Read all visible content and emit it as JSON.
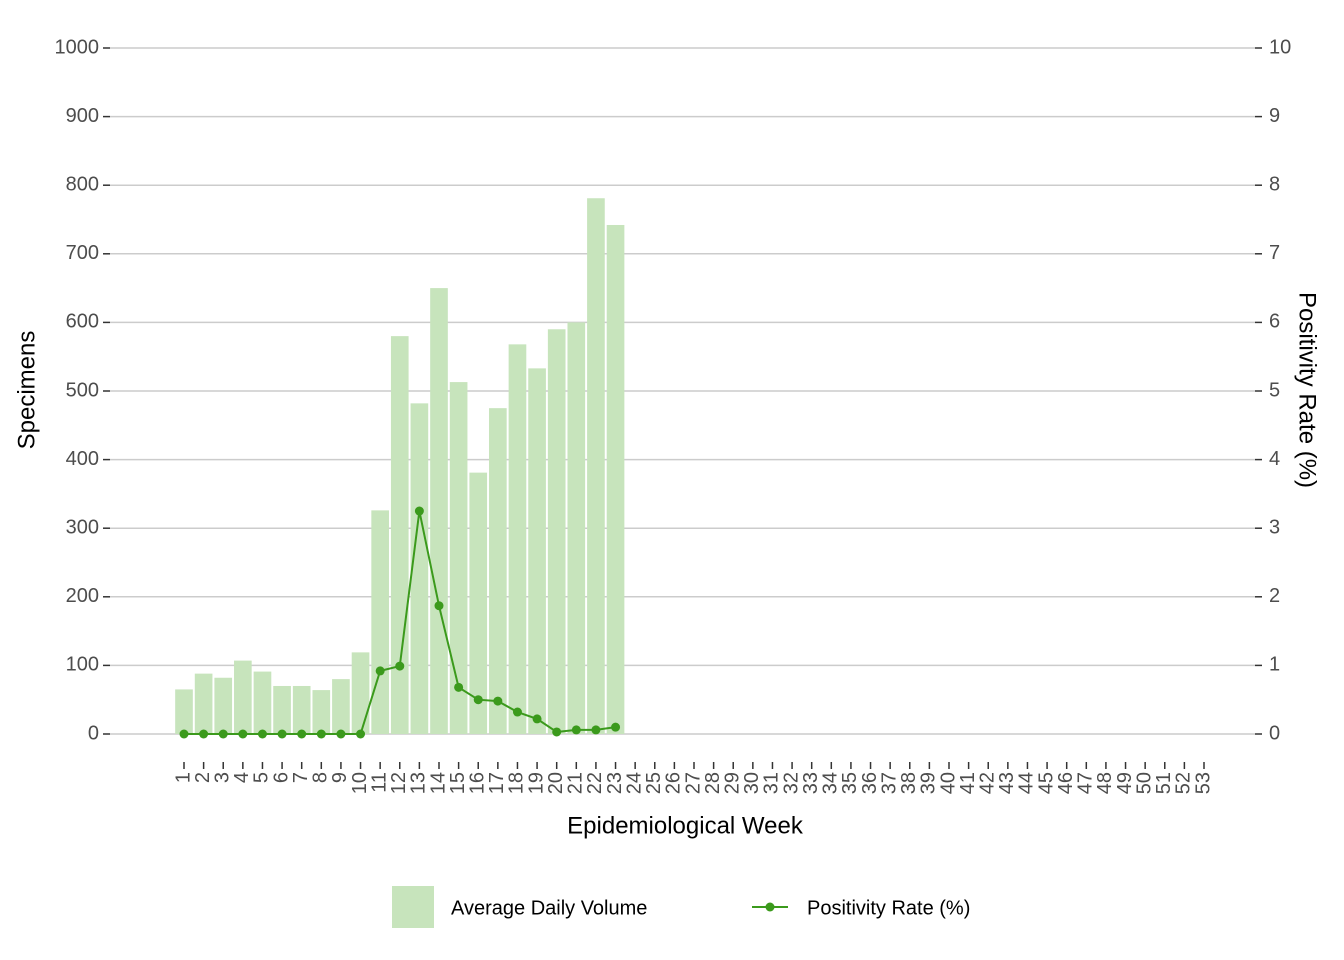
{
  "chart_data": {
    "type": "bar-line",
    "x_label": "Epidemiological Week",
    "y_label": "Specimens",
    "y2_label": "Positivity Rate (%)",
    "categories": [
      1,
      2,
      3,
      4,
      5,
      6,
      7,
      8,
      9,
      10,
      11,
      12,
      13,
      14,
      15,
      16,
      17,
      18,
      19,
      20,
      21,
      22,
      23,
      24,
      25,
      26,
      27,
      28,
      29,
      30,
      31,
      32,
      33,
      34,
      35,
      36,
      37,
      38,
      39,
      40,
      41,
      42,
      43,
      44,
      45,
      46,
      47,
      48,
      49,
      50,
      51,
      52,
      53
    ],
    "series": [
      {
        "name": "Average Daily Volume",
        "type": "bar",
        "color": "#c7e4bc",
        "values": [
          65,
          88,
          82,
          107,
          91,
          70,
          70,
          64,
          80,
          119,
          326,
          580,
          482,
          650,
          513,
          381,
          475,
          568,
          533,
          590,
          600,
          781,
          742,
          null,
          null,
          null,
          null,
          null,
          null,
          null,
          null,
          null,
          null,
          null,
          null,
          null,
          null,
          null,
          null,
          null,
          null,
          null,
          null,
          null,
          null,
          null,
          null,
          null,
          null,
          null,
          null,
          null,
          null
        ]
      },
      {
        "name": "Positivity Rate (%)",
        "type": "line",
        "axis": "y2",
        "color": "#3b9a1c",
        "values": [
          0,
          0,
          0,
          0,
          0,
          0,
          0,
          0,
          0,
          0,
          0.92,
          0.99,
          3.25,
          1.87,
          0.68,
          0.5,
          0.48,
          0.32,
          0.22,
          0.03,
          0.06,
          0.06,
          0.1,
          null,
          null,
          null,
          null,
          null,
          null,
          null,
          null,
          null,
          null,
          null,
          null,
          null,
          null,
          null,
          null,
          null,
          null,
          null,
          null,
          null,
          null,
          null,
          null,
          null,
          null,
          null,
          null,
          null,
          null
        ]
      }
    ],
    "ylim": [
      0,
      1000
    ],
    "yticks": [
      0,
      100,
      200,
      300,
      400,
      500,
      600,
      700,
      800,
      900,
      1000
    ],
    "y2lim": [
      0,
      10
    ],
    "y2ticks": [
      0,
      1,
      2,
      3,
      4,
      5,
      6,
      7,
      8,
      9,
      10
    ],
    "grid": true,
    "legend": "bottom"
  }
}
